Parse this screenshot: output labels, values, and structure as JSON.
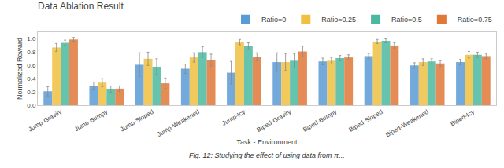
{
  "chart_data": {
    "type": "bar",
    "title": "Data Ablation Result",
    "x_label": "Task - Environment",
    "y_label": "Normalized Reward",
    "annotations": [
      "Fig. 12: Studying the effect of using data from π..."
    ],
    "categories": [
      "Jump-Gravity",
      "Jump-Bumpy",
      "Jump-Sloped",
      "Jump-Weakened",
      "Jump-Icy",
      "Biped-Gravity",
      "Biped-Bumpy",
      "Biped-Sloped",
      "Biped-Weakened",
      "Biped-Icy"
    ],
    "series": [
      {
        "name": "Ratio=0",
        "color": "#5b9bd5",
        "values": [
          0.21,
          0.29,
          0.61,
          0.55,
          0.49,
          0.65,
          0.66,
          0.74,
          0.6,
          0.65
        ],
        "errors": [
          0.07,
          0.06,
          0.18,
          0.07,
          0.17,
          0.14,
          0.05,
          0.04,
          0.04,
          0.04
        ]
      },
      {
        "name": "Ratio=0.25",
        "color": "#f0c040",
        "values": [
          0.87,
          0.34,
          0.7,
          0.72,
          0.95,
          0.65,
          0.67,
          0.96,
          0.65,
          0.76
        ],
        "errors": [
          0.06,
          0.06,
          0.1,
          0.07,
          0.04,
          0.13,
          0.05,
          0.03,
          0.05,
          0.05
        ]
      },
      {
        "name": "Ratio=0.5",
        "color": "#4ab8a0",
        "values": [
          0.94,
          0.24,
          0.58,
          0.8,
          0.89,
          0.67,
          0.71,
          0.97,
          0.66,
          0.76
        ],
        "errors": [
          0.04,
          0.05,
          0.12,
          0.08,
          0.05,
          0.11,
          0.04,
          0.03,
          0.04,
          0.04
        ]
      },
      {
        "name": "Ratio=0.75",
        "color": "#e07838",
        "values": [
          0.99,
          0.25,
          0.33,
          0.68,
          0.73,
          0.81,
          0.72,
          0.9,
          0.63,
          0.74
        ],
        "errors": [
          0.03,
          0.04,
          0.08,
          0.09,
          0.06,
          0.08,
          0.04,
          0.04,
          0.04,
          0.04
        ]
      }
    ],
    "ylim": [
      0.0,
      1.1
    ],
    "yticks": [
      {
        "value": 0.0,
        "label": "0.0"
      },
      0.2,
      0.4,
      0.6,
      0.8,
      {
        "value": 1.0,
        "label": "1.0"
      }
    ],
    "grid": false,
    "legend": "upper right"
  }
}
